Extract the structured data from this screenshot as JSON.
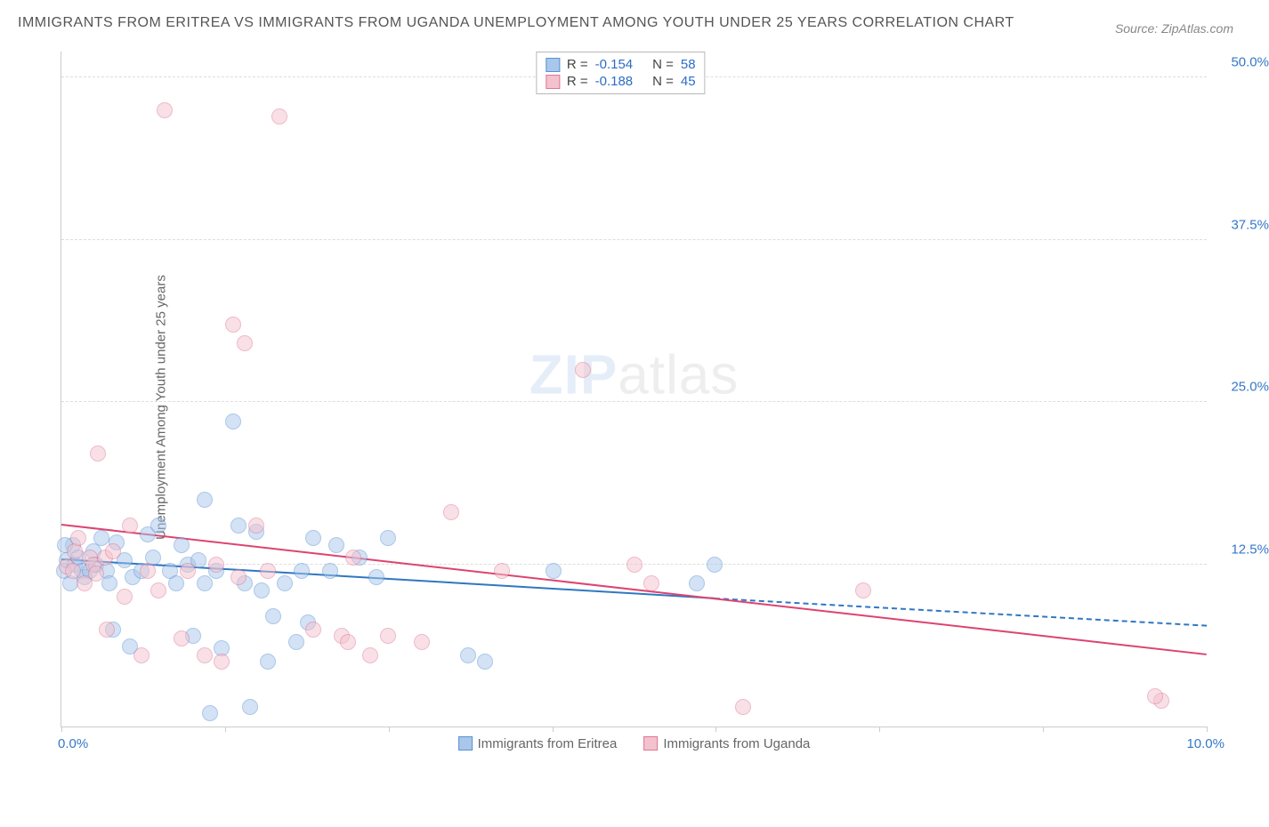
{
  "title": "IMMIGRANTS FROM ERITREA VS IMMIGRANTS FROM UGANDA UNEMPLOYMENT AMONG YOUTH UNDER 25 YEARS CORRELATION CHART",
  "source": "Source: ZipAtlas.com",
  "watermark": {
    "part1": "ZIP",
    "part2": "atlas"
  },
  "chart": {
    "type": "scatter",
    "y_axis_label": "Unemployment Among Youth under 25 years",
    "xlim": [
      0,
      10.0
    ],
    "ylim": [
      0,
      52
    ],
    "x_origin_label": "0.0%",
    "x_max_label": "10.0%",
    "y_ticks": [
      {
        "v": 12.5,
        "label": "12.5%"
      },
      {
        "v": 25.0,
        "label": "25.0%"
      },
      {
        "v": 37.5,
        "label": "37.5%"
      },
      {
        "v": 50.0,
        "label": "50.0%"
      }
    ],
    "x_tick_positions": [
      0,
      1.43,
      2.86,
      4.29,
      5.71,
      7.14,
      8.57,
      10.0
    ],
    "marker_radius": 9,
    "marker_opacity": 0.5,
    "background_color": "#ffffff",
    "grid_color": "#dddddd",
    "axis_color": "#cccccc",
    "tick_label_color": "#3478c8",
    "series": [
      {
        "id": "eritrea",
        "label": "Immigrants from Eritrea",
        "fill": "#a9c7ea",
        "stroke": "#5a91d4",
        "correlation_R": "-0.154",
        "N": "58",
        "trend": {
          "x1": 0.0,
          "y1": 12.8,
          "x2": 5.7,
          "y2": 9.8,
          "dash_x2": 10.0,
          "dash_y2": 7.7,
          "color": "#2f77c3"
        },
        "points": [
          {
            "x": 0.02,
            "y": 12.0
          },
          {
            "x": 0.05,
            "y": 12.8
          },
          {
            "x": 0.1,
            "y": 14.0
          },
          {
            "x": 0.08,
            "y": 11.0
          },
          {
            "x": 0.12,
            "y": 12.5
          },
          {
            "x": 0.15,
            "y": 13.0
          },
          {
            "x": 0.18,
            "y": 12.0
          },
          {
            "x": 0.03,
            "y": 14.0
          },
          {
            "x": 0.2,
            "y": 11.5
          },
          {
            "x": 0.25,
            "y": 12.0
          },
          {
            "x": 0.28,
            "y": 13.5
          },
          {
            "x": 0.3,
            "y": 12.5
          },
          {
            "x": 0.35,
            "y": 14.5
          },
          {
            "x": 0.4,
            "y": 12.0
          },
          {
            "x": 0.42,
            "y": 11.0
          },
          {
            "x": 0.45,
            "y": 7.5
          },
          {
            "x": 0.48,
            "y": 14.2
          },
          {
            "x": 0.55,
            "y": 12.8
          },
          {
            "x": 0.6,
            "y": 6.2
          },
          {
            "x": 0.62,
            "y": 11.5
          },
          {
            "x": 0.7,
            "y": 12.0
          },
          {
            "x": 0.75,
            "y": 14.8
          },
          {
            "x": 0.8,
            "y": 13.0
          },
          {
            "x": 0.85,
            "y": 15.5
          },
          {
            "x": 0.95,
            "y": 12.0
          },
          {
            "x": 1.0,
            "y": 11.0
          },
          {
            "x": 1.05,
            "y": 14.0
          },
          {
            "x": 1.1,
            "y": 12.5
          },
          {
            "x": 1.15,
            "y": 7.0
          },
          {
            "x": 1.2,
            "y": 12.8
          },
          {
            "x": 1.25,
            "y": 17.5
          },
          {
            "x": 1.25,
            "y": 11.0
          },
          {
            "x": 1.3,
            "y": 1.0
          },
          {
            "x": 1.35,
            "y": 12.0
          },
          {
            "x": 1.4,
            "y": 6.0
          },
          {
            "x": 1.5,
            "y": 23.5
          },
          {
            "x": 1.55,
            "y": 15.5
          },
          {
            "x": 1.6,
            "y": 11.0
          },
          {
            "x": 1.65,
            "y": 1.5
          },
          {
            "x": 1.7,
            "y": 15.0
          },
          {
            "x": 1.75,
            "y": 10.5
          },
          {
            "x": 1.8,
            "y": 5.0
          },
          {
            "x": 1.85,
            "y": 8.5
          },
          {
            "x": 1.95,
            "y": 11.0
          },
          {
            "x": 2.05,
            "y": 6.5
          },
          {
            "x": 2.1,
            "y": 12.0
          },
          {
            "x": 2.15,
            "y": 8.0
          },
          {
            "x": 2.2,
            "y": 14.5
          },
          {
            "x": 2.35,
            "y": 12.0
          },
          {
            "x": 2.4,
            "y": 14.0
          },
          {
            "x": 2.6,
            "y": 13.0
          },
          {
            "x": 2.75,
            "y": 11.5
          },
          {
            "x": 2.85,
            "y": 14.5
          },
          {
            "x": 3.55,
            "y": 5.5
          },
          {
            "x": 3.7,
            "y": 5.0
          },
          {
            "x": 4.3,
            "y": 12.0
          },
          {
            "x": 5.55,
            "y": 11.0
          },
          {
            "x": 5.7,
            "y": 12.5
          }
        ]
      },
      {
        "id": "uganda",
        "label": "Immigrants from Uganda",
        "fill": "#f3c2ce",
        "stroke": "#e07693",
        "correlation_R": "-0.188",
        "N": "45",
        "trend": {
          "x1": 0.0,
          "y1": 15.5,
          "x2": 10.0,
          "y2": 5.5,
          "color": "#dc4470"
        },
        "points": [
          {
            "x": 0.05,
            "y": 12.3
          },
          {
            "x": 0.1,
            "y": 12.0
          },
          {
            "x": 0.12,
            "y": 13.5
          },
          {
            "x": 0.15,
            "y": 14.5
          },
          {
            "x": 0.2,
            "y": 11.0
          },
          {
            "x": 0.25,
            "y": 13.0
          },
          {
            "x": 0.28,
            "y": 12.5
          },
          {
            "x": 0.3,
            "y": 11.8
          },
          {
            "x": 0.32,
            "y": 21.0
          },
          {
            "x": 0.38,
            "y": 13.0
          },
          {
            "x": 0.4,
            "y": 7.5
          },
          {
            "x": 0.45,
            "y": 13.5
          },
          {
            "x": 0.55,
            "y": 10.0
          },
          {
            "x": 0.6,
            "y": 15.5
          },
          {
            "x": 0.7,
            "y": 5.5
          },
          {
            "x": 0.75,
            "y": 12.0
          },
          {
            "x": 0.85,
            "y": 10.5
          },
          {
            "x": 0.9,
            "y": 47.5
          },
          {
            "x": 1.05,
            "y": 6.8
          },
          {
            "x": 1.1,
            "y": 12.0
          },
          {
            "x": 1.25,
            "y": 5.5
          },
          {
            "x": 1.35,
            "y": 12.5
          },
          {
            "x": 1.4,
            "y": 5.0
          },
          {
            "x": 1.5,
            "y": 31.0
          },
          {
            "x": 1.55,
            "y": 11.5
          },
          {
            "x": 1.6,
            "y": 29.5
          },
          {
            "x": 1.7,
            "y": 15.5
          },
          {
            "x": 1.8,
            "y": 12.0
          },
          {
            "x": 1.9,
            "y": 47.0
          },
          {
            "x": 2.2,
            "y": 7.5
          },
          {
            "x": 2.45,
            "y": 7.0
          },
          {
            "x": 2.5,
            "y": 6.5
          },
          {
            "x": 2.55,
            "y": 13.0
          },
          {
            "x": 2.7,
            "y": 5.5
          },
          {
            "x": 2.85,
            "y": 7.0
          },
          {
            "x": 3.15,
            "y": 6.5
          },
          {
            "x": 3.4,
            "y": 16.5
          },
          {
            "x": 3.85,
            "y": 12.0
          },
          {
            "x": 4.55,
            "y": 27.5
          },
          {
            "x": 5.0,
            "y": 12.5
          },
          {
            "x": 5.15,
            "y": 11.0
          },
          {
            "x": 5.95,
            "y": 1.5
          },
          {
            "x": 7.0,
            "y": 10.5
          },
          {
            "x": 9.6,
            "y": 2.0
          },
          {
            "x": 9.55,
            "y": 2.3
          }
        ]
      }
    ]
  },
  "bottom_legend": [
    {
      "label": "Immigrants from Eritrea",
      "fill": "#a9c7ea",
      "stroke": "#5a91d4"
    },
    {
      "label": "Immigrants from Uganda",
      "fill": "#f3c2ce",
      "stroke": "#e07693"
    }
  ],
  "top_legend_labels": {
    "R": "R =",
    "N": "N ="
  }
}
